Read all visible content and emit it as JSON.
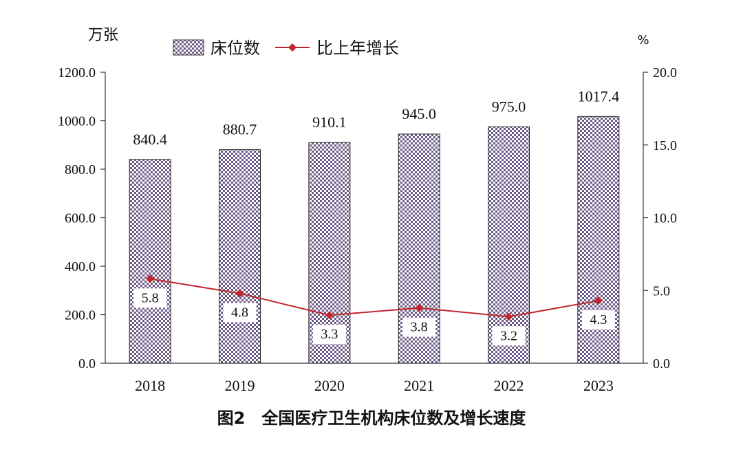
{
  "chart_data": {
    "type": "bar",
    "categories": [
      "2018",
      "2019",
      "2020",
      "2021",
      "2022",
      "2023"
    ],
    "series": [
      {
        "name": "床位数",
        "type": "bar",
        "axis": "left",
        "values": [
          840.4,
          880.7,
          910.1,
          945.0,
          975.0,
          1017.4
        ],
        "labels": [
          "840.4",
          "880.7",
          "910.1",
          "945.0",
          "975.0",
          "1017.4"
        ]
      },
      {
        "name": "比上年增长",
        "type": "line",
        "axis": "right",
        "values": [
          5.8,
          4.8,
          3.3,
          3.8,
          3.2,
          4.3
        ],
        "labels": [
          "5.8",
          "4.8",
          "3.3",
          "3.8",
          "3.2",
          "4.3"
        ]
      }
    ],
    "title": "图2　全国医疗卫生机构床位数及增长速度",
    "ylabel": "万张",
    "y2label": "%",
    "ylim": [
      0,
      1200
    ],
    "y2lim": [
      0,
      20
    ],
    "yticks": [
      "0.0",
      "200.0",
      "400.0",
      "600.0",
      "800.0",
      "1000.0",
      "1200.0"
    ],
    "y2ticks": [
      "0.0",
      "5.0",
      "10.0",
      "15.0",
      "20.0"
    ],
    "legend_position": "top",
    "grid": false,
    "colors": {
      "bar_fill": "#6b5a86",
      "bar_pattern_bg": "#ffffff",
      "line": "#c0262c",
      "axis": "#333333"
    }
  }
}
